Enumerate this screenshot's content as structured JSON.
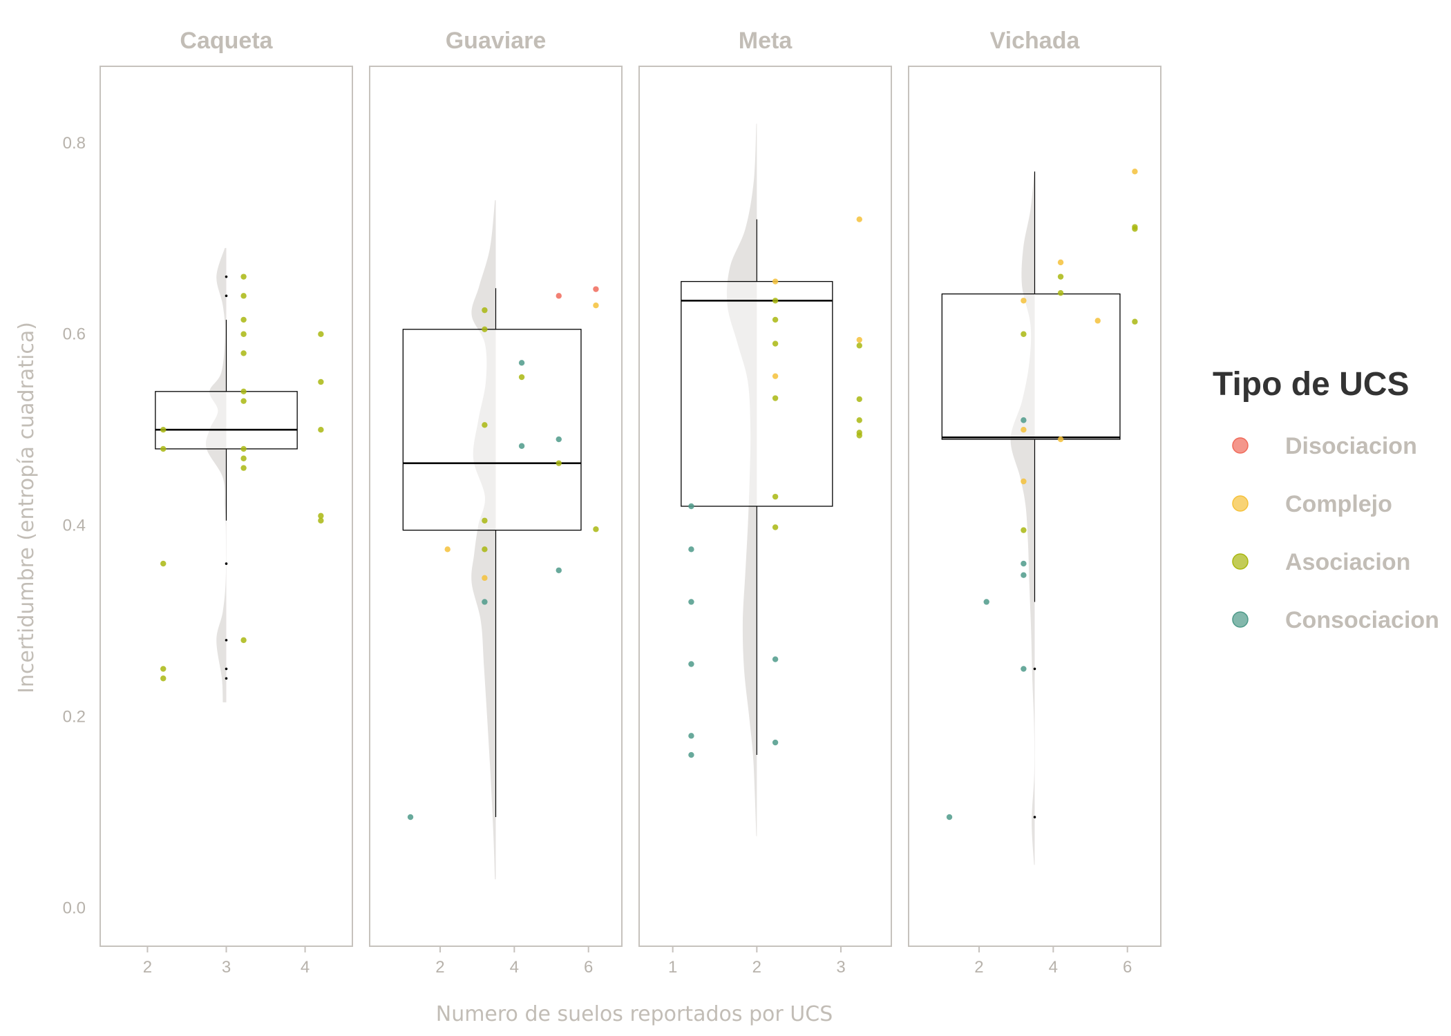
{
  "chart_data": {
    "type": "raincloud",
    "ylabel": "Incertidumbre (entropía cuadratica)",
    "xlabel": "Numero de suelos reportados por UCS",
    "ylim": [
      -0.04,
      0.88
    ],
    "y_ticks": [
      0.0,
      0.2,
      0.4,
      0.6,
      0.8
    ],
    "y_tick_labels": [
      "0.0",
      "0.2",
      "0.4",
      "0.6",
      "0.8"
    ],
    "legend": {
      "title": "Tipo de UCS",
      "position": "right",
      "items": [
        {
          "key": "Disociacion",
          "label": "Disociacion",
          "color": "#f06a5a"
        },
        {
          "key": "Complejo",
          "label": "Complejo",
          "color": "#f5c13a"
        },
        {
          "key": "Asociacion",
          "label": "Asociacion",
          "color": "#a9b710"
        },
        {
          "key": "Consociacion",
          "label": "Consociacion",
          "color": "#4e9a89"
        }
      ]
    },
    "panels": [
      {
        "name": "Caqueta",
        "xlim": [
          1.4,
          4.6
        ],
        "x_ticks": [
          2,
          3,
          4
        ],
        "x_tick_labels": [
          "2",
          "3",
          "4"
        ],
        "box": {
          "x": 3,
          "q1": 0.48,
          "median": 0.5,
          "q3": 0.54,
          "low": 0.405,
          "high": 0.615,
          "x_left": 2.1,
          "x_right": 3.9
        },
        "outliers": [
          0.66,
          0.64,
          0.36,
          0.28,
          0.25,
          0.24
        ],
        "density": {
          "x": 3,
          "width": 0.5,
          "y": [
            0.215,
            0.24,
            0.28,
            0.31,
            0.345,
            0.4,
            0.42,
            0.45,
            0.48,
            0.5,
            0.52,
            0.54,
            0.56,
            0.6,
            0.63,
            0.66,
            0.69
          ],
          "d": [
            0.35,
            0.45,
            1.0,
            0.35,
            0.05,
            0.05,
            0.15,
            0.35,
            2.0,
            1.7,
            0.85,
            1.7,
            0.5,
            0.12,
            0.35,
            1.0,
            0.15
          ]
        },
        "points": [
          {
            "x": 2.2,
            "y": 0.5,
            "type": "Asociacion"
          },
          {
            "x": 2.2,
            "y": 0.48,
            "type": "Asociacion"
          },
          {
            "x": 2.2,
            "y": 0.36,
            "type": "Asociacion"
          },
          {
            "x": 2.2,
            "y": 0.25,
            "type": "Asociacion"
          },
          {
            "x": 2.2,
            "y": 0.24,
            "type": "Asociacion"
          },
          {
            "x": 3.22,
            "y": 0.66,
            "type": "Asociacion"
          },
          {
            "x": 3.22,
            "y": 0.64,
            "type": "Asociacion"
          },
          {
            "x": 3.22,
            "y": 0.615,
            "type": "Asociacion"
          },
          {
            "x": 3.22,
            "y": 0.6,
            "type": "Asociacion"
          },
          {
            "x": 3.22,
            "y": 0.58,
            "type": "Asociacion"
          },
          {
            "x": 3.22,
            "y": 0.54,
            "type": "Asociacion"
          },
          {
            "x": 3.22,
            "y": 0.53,
            "type": "Asociacion"
          },
          {
            "x": 3.22,
            "y": 0.48,
            "type": "Asociacion"
          },
          {
            "x": 3.22,
            "y": 0.47,
            "type": "Asociacion"
          },
          {
            "x": 3.22,
            "y": 0.46,
            "type": "Asociacion"
          },
          {
            "x": 3.22,
            "y": 0.28,
            "type": "Asociacion"
          },
          {
            "x": 4.2,
            "y": 0.6,
            "type": "Asociacion"
          },
          {
            "x": 4.2,
            "y": 0.55,
            "type": "Asociacion"
          },
          {
            "x": 4.2,
            "y": 0.5,
            "type": "Asociacion"
          },
          {
            "x": 4.2,
            "y": 0.41,
            "type": "Asociacion"
          },
          {
            "x": 4.2,
            "y": 0.405,
            "type": "Asociacion"
          }
        ]
      },
      {
        "name": "Guaviare",
        "xlim": [
          0.1,
          6.9
        ],
        "x_ticks": [
          2,
          4,
          6
        ],
        "x_tick_labels": [
          "2",
          "4",
          "6"
        ],
        "box": {
          "x": 3.5,
          "q1": 0.395,
          "median": 0.465,
          "q3": 0.605,
          "low": 0.095,
          "high": 0.648,
          "x_left": 1.0,
          "x_right": 5.8
        },
        "outliers": [],
        "density": {
          "x": 3.5,
          "width": 1.3,
          "y": [
            0.03,
            0.08,
            0.15,
            0.25,
            0.3,
            0.34,
            0.37,
            0.4,
            0.43,
            0.47,
            0.51,
            0.55,
            0.59,
            0.62,
            0.65,
            0.69,
            0.74
          ],
          "d": [
            0.05,
            0.15,
            0.35,
            0.7,
            0.9,
            1.45,
            1.3,
            1.05,
            0.65,
            1.35,
            1.05,
            0.6,
            0.65,
            1.45,
            1.0,
            0.35,
            0.05
          ]
        },
        "points": [
          {
            "x": 1.2,
            "y": 0.095,
            "type": "Consociacion"
          },
          {
            "x": 2.2,
            "y": 0.375,
            "type": "Complejo"
          },
          {
            "x": 3.2,
            "y": 0.625,
            "type": "Asociacion"
          },
          {
            "x": 3.2,
            "y": 0.605,
            "type": "Asociacion"
          },
          {
            "x": 3.2,
            "y": 0.505,
            "type": "Asociacion"
          },
          {
            "x": 3.2,
            "y": 0.405,
            "type": "Asociacion"
          },
          {
            "x": 3.2,
            "y": 0.375,
            "type": "Asociacion"
          },
          {
            "x": 3.2,
            "y": 0.345,
            "type": "Complejo"
          },
          {
            "x": 3.2,
            "y": 0.32,
            "type": "Consociacion"
          },
          {
            "x": 4.2,
            "y": 0.57,
            "type": "Consociacion"
          },
          {
            "x": 4.2,
            "y": 0.555,
            "type": "Asociacion"
          },
          {
            "x": 4.2,
            "y": 0.483,
            "type": "Consociacion"
          },
          {
            "x": 5.2,
            "y": 0.64,
            "type": "Disociacion"
          },
          {
            "x": 5.2,
            "y": 0.49,
            "type": "Consociacion"
          },
          {
            "x": 5.2,
            "y": 0.465,
            "type": "Asociacion"
          },
          {
            "x": 5.2,
            "y": 0.353,
            "type": "Consociacion"
          },
          {
            "x": 6.2,
            "y": 0.647,
            "type": "Disociacion"
          },
          {
            "x": 6.2,
            "y": 0.63,
            "type": "Complejo"
          },
          {
            "x": 6.2,
            "y": 0.396,
            "type": "Asociacion"
          }
        ]
      },
      {
        "name": "Meta",
        "xlim": [
          0.6,
          3.6
        ],
        "x_ticks": [
          1,
          2,
          3
        ],
        "x_tick_labels": [
          "1",
          "2",
          "3"
        ],
        "box": {
          "x": 2,
          "q1": 0.42,
          "median": 0.635,
          "q3": 0.655,
          "low": 0.16,
          "high": 0.72,
          "x_left": 1.1,
          "x_right": 2.9
        },
        "outliers": [],
        "density": {
          "x": 2,
          "width": 0.7,
          "y": [
            0.075,
            0.12,
            0.16,
            0.2,
            0.25,
            0.3,
            0.35,
            0.4,
            0.45,
            0.5,
            0.55,
            0.59,
            0.63,
            0.67,
            0.71,
            0.76,
            0.82
          ],
          "d": [
            0.02,
            0.08,
            0.15,
            0.3,
            0.5,
            0.55,
            0.45,
            0.35,
            0.28,
            0.25,
            0.35,
            0.75,
            1.15,
            1.05,
            0.45,
            0.12,
            0.02
          ]
        },
        "points": [
          {
            "x": 1.22,
            "y": 0.42,
            "type": "Consociacion"
          },
          {
            "x": 1.22,
            "y": 0.375,
            "type": "Consociacion"
          },
          {
            "x": 1.22,
            "y": 0.32,
            "type": "Consociacion"
          },
          {
            "x": 1.22,
            "y": 0.255,
            "type": "Consociacion"
          },
          {
            "x": 1.22,
            "y": 0.18,
            "type": "Consociacion"
          },
          {
            "x": 1.22,
            "y": 0.16,
            "type": "Consociacion"
          },
          {
            "x": 2.22,
            "y": 0.655,
            "type": "Complejo"
          },
          {
            "x": 2.22,
            "y": 0.635,
            "type": "Asociacion"
          },
          {
            "x": 2.22,
            "y": 0.615,
            "type": "Asociacion"
          },
          {
            "x": 2.22,
            "y": 0.59,
            "type": "Asociacion"
          },
          {
            "x": 2.22,
            "y": 0.556,
            "type": "Complejo"
          },
          {
            "x": 2.22,
            "y": 0.533,
            "type": "Asociacion"
          },
          {
            "x": 2.22,
            "y": 0.43,
            "type": "Asociacion"
          },
          {
            "x": 2.22,
            "y": 0.398,
            "type": "Asociacion"
          },
          {
            "x": 2.22,
            "y": 0.26,
            "type": "Consociacion"
          },
          {
            "x": 2.22,
            "y": 0.173,
            "type": "Consociacion"
          },
          {
            "x": 3.22,
            "y": 0.72,
            "type": "Complejo"
          },
          {
            "x": 3.22,
            "y": 0.594,
            "type": "Complejo"
          },
          {
            "x": 3.22,
            "y": 0.588,
            "type": "Asociacion"
          },
          {
            "x": 3.22,
            "y": 0.532,
            "type": "Asociacion"
          },
          {
            "x": 3.22,
            "y": 0.51,
            "type": "Asociacion"
          },
          {
            "x": 3.22,
            "y": 0.497,
            "type": "Asociacion"
          },
          {
            "x": 3.22,
            "y": 0.494,
            "type": "Asociacion"
          }
        ]
      },
      {
        "name": "Vichada",
        "xlim": [
          0.1,
          6.9
        ],
        "x_ticks": [
          2,
          4,
          6
        ],
        "x_tick_labels": [
          "2",
          "4",
          "6"
        ],
        "box": {
          "x": 3.5,
          "q1": 0.49,
          "median": 0.492,
          "q3": 0.642,
          "low": 0.32,
          "high": 0.77,
          "x_left": 1.0,
          "x_right": 5.8
        },
        "outliers": [
          0.25,
          0.095
        ],
        "density": {
          "x": 3.5,
          "width": 1.3,
          "y": [
            0.045,
            0.09,
            0.14,
            0.19,
            0.24,
            0.29,
            0.34,
            0.38,
            0.42,
            0.45,
            0.49,
            0.53,
            0.57,
            0.61,
            0.65,
            0.69,
            0.73,
            0.77
          ],
          "d": [
            0.05,
            0.25,
            0.04,
            0.05,
            0.2,
            0.3,
            0.45,
            0.55,
            0.75,
            1.2,
            2.0,
            1.05,
            0.45,
            0.35,
            1.05,
            0.95,
            0.35,
            0.04
          ]
        },
        "points": [
          {
            "x": 1.2,
            "y": 0.095,
            "type": "Consociacion"
          },
          {
            "x": 2.2,
            "y": 0.32,
            "type": "Consociacion"
          },
          {
            "x": 3.2,
            "y": 0.635,
            "type": "Complejo"
          },
          {
            "x": 3.2,
            "y": 0.6,
            "type": "Asociacion"
          },
          {
            "x": 3.2,
            "y": 0.51,
            "type": "Consociacion"
          },
          {
            "x": 3.2,
            "y": 0.5,
            "type": "Complejo"
          },
          {
            "x": 3.2,
            "y": 0.446,
            "type": "Complejo"
          },
          {
            "x": 3.2,
            "y": 0.395,
            "type": "Asociacion"
          },
          {
            "x": 3.2,
            "y": 0.36,
            "type": "Consociacion"
          },
          {
            "x": 3.2,
            "y": 0.348,
            "type": "Consociacion"
          },
          {
            "x": 3.2,
            "y": 0.25,
            "type": "Consociacion"
          },
          {
            "x": 4.2,
            "y": 0.675,
            "type": "Complejo"
          },
          {
            "x": 4.2,
            "y": 0.66,
            "type": "Asociacion"
          },
          {
            "x": 4.2,
            "y": 0.643,
            "type": "Asociacion"
          },
          {
            "x": 4.2,
            "y": 0.49,
            "type": "Complejo"
          },
          {
            "x": 5.2,
            "y": 0.614,
            "type": "Complejo"
          },
          {
            "x": 6.2,
            "y": 0.77,
            "type": "Complejo"
          },
          {
            "x": 6.2,
            "y": 0.712,
            "type": "Asociacion"
          },
          {
            "x": 6.2,
            "y": 0.71,
            "type": "Asociacion"
          },
          {
            "x": 6.2,
            "y": 0.613,
            "type": "Asociacion"
          }
        ]
      }
    ]
  }
}
